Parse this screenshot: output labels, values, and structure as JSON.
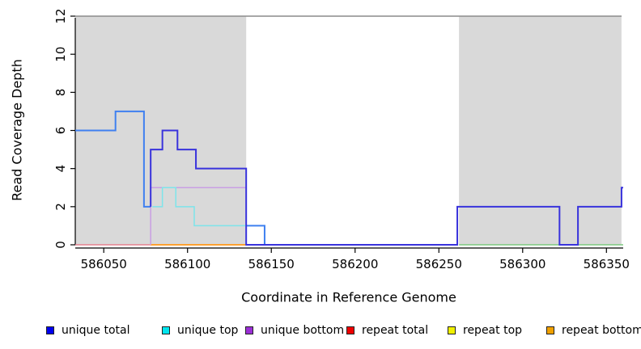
{
  "chart_data": {
    "type": "line",
    "title": "",
    "xlabel": "Coordinate in Reference Genome",
    "ylabel": "Read Coverage Depth",
    "xlim": [
      586033,
      586360
    ],
    "ylim": [
      0,
      12
    ],
    "xticks": [
      586050,
      586100,
      586150,
      586200,
      586250,
      586300,
      586350
    ],
    "yticks": [
      0,
      2,
      4,
      6,
      8,
      10,
      12
    ],
    "grid": false,
    "legend_position": "bottom",
    "shade_color": "#d9d9d9",
    "shaded_regions": [
      {
        "x0": 586033,
        "x1": 586135
      },
      {
        "x0": 586262,
        "x1": 586359
      }
    ],
    "series": [
      {
        "name": "repeat total",
        "color": "#e4808d",
        "width": 1.4,
        "segments": [
          [
            [
              586033,
              0
            ],
            [
              586261,
              0
            ]
          ]
        ]
      },
      {
        "name": "repeat bottom",
        "color": "#ff9f1e",
        "width": 1.8,
        "segments": [
          [
            [
              586078,
              0
            ],
            [
              586135,
              0
            ]
          ]
        ]
      },
      {
        "name": "baseline green (no legend entry)",
        "color": "#7cc87f",
        "width": 1.5,
        "segments": [
          [
            [
              586262,
              0
            ],
            [
              586360,
              0
            ]
          ]
        ]
      },
      {
        "name": "unique bottom",
        "color": "#c99fe3",
        "width": 1.5,
        "segments": [
          [
            [
              586078,
              0
            ],
            [
              586078,
              3
            ],
            [
              586135,
              3
            ],
            [
              586135,
              0
            ],
            [
              586146,
              0
            ]
          ]
        ]
      },
      {
        "name": "unique top",
        "color": "#7de4ea",
        "width": 1.5,
        "segments": [
          [
            [
              586079,
              2
            ],
            [
              586085,
              2
            ],
            [
              586085,
              3
            ],
            [
              586093,
              3
            ],
            [
              586093,
              2
            ],
            [
              586104,
              2
            ],
            [
              586104,
              1
            ],
            [
              586135,
              1
            ]
          ]
        ]
      },
      {
        "name": "coverage total light blue (no legend entry)",
        "color": "#3f80f0",
        "width": 2,
        "segments": [
          [
            [
              586033,
              6
            ],
            [
              586057,
              6
            ],
            [
              586057,
              7
            ],
            [
              586074,
              7
            ],
            [
              586074,
              2
            ],
            [
              586078,
              2
            ]
          ],
          [
            [
              586135,
              1
            ],
            [
              586146,
              1
            ],
            [
              586146,
              0
            ],
            [
              586152,
              0
            ]
          ]
        ]
      },
      {
        "name": "unique total",
        "color": "#3933dc",
        "width": 2,
        "segments": [
          [
            [
              586078,
              2
            ],
            [
              586078,
              5
            ],
            [
              586085,
              5
            ],
            [
              586085,
              6
            ],
            [
              586094,
              6
            ],
            [
              586094,
              5
            ],
            [
              586105,
              5
            ],
            [
              586105,
              4
            ],
            [
              586135,
              4
            ],
            [
              586135,
              0
            ],
            [
              586261,
              0
            ],
            [
              586261,
              2
            ],
            [
              586322,
              2
            ],
            [
              586322,
              0
            ],
            [
              586333,
              0
            ],
            [
              586333,
              2
            ],
            [
              586359,
              2
            ],
            [
              586359,
              3
            ],
            [
              586360,
              3
            ]
          ]
        ]
      }
    ],
    "legend": [
      {
        "label": "unique total",
        "color": "#0000ee"
      },
      {
        "label": "unique top",
        "color": "#00e5ee"
      },
      {
        "label": "unique bottom",
        "color": "#9b2fd6"
      },
      {
        "label": "repeat total",
        "color": "#ee0000"
      },
      {
        "label": "repeat top",
        "color": "#f0f000"
      },
      {
        "label": "repeat bottom",
        "color": "#f0a000"
      }
    ]
  }
}
